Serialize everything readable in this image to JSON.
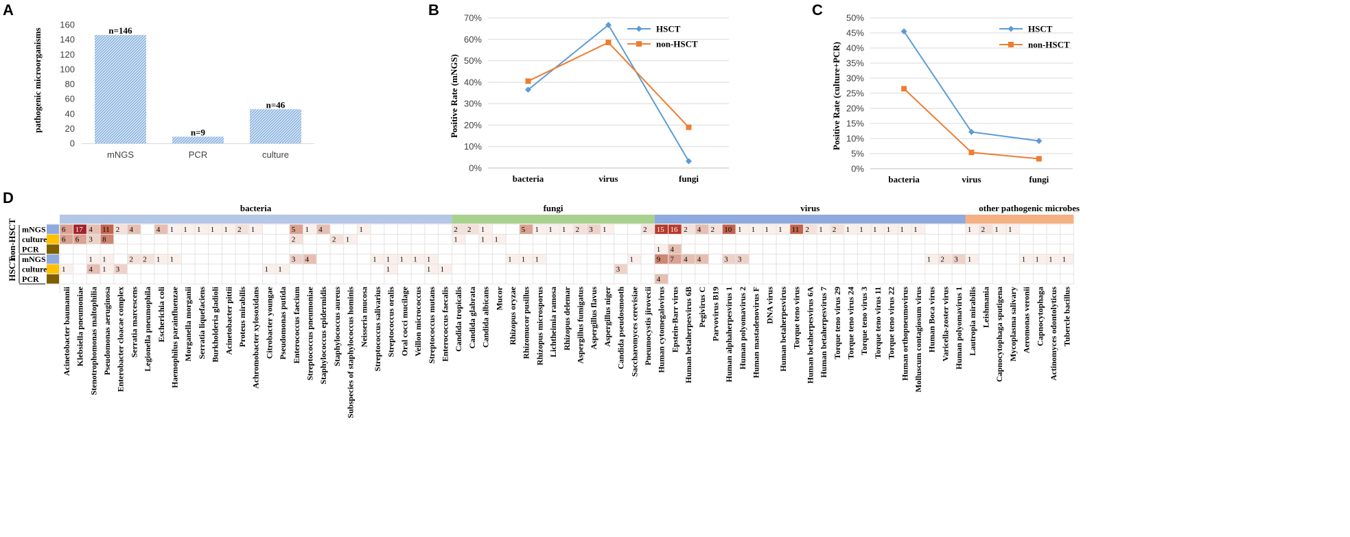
{
  "panels": {
    "a": {
      "letter": "A"
    },
    "b": {
      "letter": "B"
    },
    "c": {
      "letter": "C"
    },
    "d": {
      "letter": "D"
    }
  },
  "chart_data": [
    {
      "id": "A",
      "type": "bar",
      "ylabel": "pathogenic microorganisms",
      "categories": [
        "mNGS",
        "PCR",
        "culture"
      ],
      "values": [
        146,
        9,
        46
      ],
      "labels": [
        "n=146",
        "n=9",
        "n=46"
      ],
      "ylim": [
        0,
        160
      ],
      "yticks": [
        0,
        20,
        40,
        60,
        80,
        100,
        120,
        140,
        160
      ],
      "grid": false
    },
    {
      "id": "B",
      "type": "line",
      "ylabel": "Positive Rate (mNGS)",
      "categories": [
        "bacteria",
        "virus",
        "fungi"
      ],
      "ylim": [
        0,
        70
      ],
      "yticks": [
        "0%",
        "10%",
        "20%",
        "30%",
        "40%",
        "50%",
        "60%",
        "70%"
      ],
      "grid": true,
      "legend": "top-right",
      "series": [
        {
          "name": "HSCT",
          "values": [
            36.5,
            66.7,
            3.2
          ],
          "color": "#5b9bd5",
          "marker": "diamond"
        },
        {
          "name": "non-HSCT",
          "values": [
            40.5,
            58.5,
            19.0
          ],
          "color": "#ed7d31",
          "marker": "square"
        }
      ]
    },
    {
      "id": "C",
      "type": "line",
      "ylabel": "Positive Rate (culture+PCR)",
      "categories": [
        "bacteria",
        "virus",
        "fungi"
      ],
      "ylim": [
        0,
        50
      ],
      "yticks": [
        "0%",
        "5%",
        "10%",
        "15%",
        "20%",
        "25%",
        "30%",
        "35%",
        "40%",
        "45%",
        "50%"
      ],
      "grid": true,
      "legend": "top-right",
      "series": [
        {
          "name": "HSCT",
          "values": [
            45.5,
            12.2,
            9.2
          ],
          "color": "#5b9bd5",
          "marker": "diamond"
        },
        {
          "name": "non-HSCT",
          "values": [
            26.5,
            5.4,
            3.3
          ],
          "color": "#ed7d31",
          "marker": "square"
        }
      ]
    },
    {
      "id": "D",
      "type": "heatmap",
      "groups": [
        {
          "name": "bacteria",
          "span": [
            0,
            28
          ],
          "color": "#b4c7e7"
        },
        {
          "name": "fungi",
          "span": [
            29,
            43
          ],
          "color": "#a9d18e"
        },
        {
          "name": "virus",
          "span": [
            44,
            66
          ],
          "color": "#8faadc"
        },
        {
          "name": "other pathogenic microbes",
          "span": [
            67,
            74
          ],
          "color": "#f4b183"
        }
      ],
      "cohorts": [
        {
          "name": "non-HSCT",
          "rows": [
            0,
            1,
            2
          ]
        },
        {
          "name": "HSCT",
          "rows": [
            3,
            4,
            5
          ]
        }
      ],
      "rows": [
        {
          "name": "mNGS",
          "color": "#8faadc"
        },
        {
          "name": "culture",
          "color": "#ffc000"
        },
        {
          "name": "PCR",
          "color": "#7f6000"
        },
        {
          "name": "mNGS",
          "color": "#8faadc"
        },
        {
          "name": "culture",
          "color": "#ffc000"
        },
        {
          "name": "PCR",
          "color": "#7f6000"
        }
      ],
      "columns": [
        "Acinetobacter baumannii",
        "Klebsiella pneumoniae",
        "Stenotrophomonas maltophilia",
        "Pseudomonas aeruginosa",
        "Enterobacter cloacae complex",
        "Serratia marcescens",
        "Legionella pneumophila",
        "Escherichia coli",
        "Haemophilus parainfluenzae",
        "Morganella morganii",
        "Serratia liquefaciens",
        "Burkholderia gladioli",
        "Acinetobacter pittii",
        "Proteus mirabilis",
        "Achromobacter xylosoxidans",
        "Citrobacter youngae",
        "Pseudomonas putida",
        "Enterococcus faecium",
        "Streptococcus pneumoniae",
        "Staphylococcus epidermidis",
        "Staphylococcus aureus",
        "Subspecies of staphylococcus hominis",
        "Neisseria mucosa",
        "Streptococcus salivarius",
        "Streptococcus oralis",
        "Oral cocci mucilage",
        "Veillon micrococcus",
        "Streptococcus mutans",
        "Enterococcus faecalis",
        "Candida tropicalis",
        "Candida glabrata",
        "Candida albicans",
        "Mucor",
        "Rhizopus oryzae",
        "Rhizomucor pusillus",
        "Rhizopus microsporus",
        "Lichtheimia ramosa",
        "Rhizopus delemar",
        "Aspergillus fumigatus",
        "Aspergillus flavus",
        "Aspergillus niger",
        "Candida pseudosmooth",
        "Saccharomyces cerevisiae",
        "Pneumocystis jirovecii",
        "Human cytomegalovirus",
        "Epstein-Barr virus",
        "Human betaherpesvirus 6B",
        "Pegivirus C",
        "Parvovirus B19",
        "Human alphaherpesvirus 1",
        "Human polyomavirus 2",
        "Human mastadenovirus F",
        "DNA virus",
        "Human betaherpesvirus",
        "Torque teno virus",
        "Human betaherpesvirus 6A",
        "Human betaherpesvirus 7",
        "Torque teno virus 29",
        "Torque teno virus 24",
        "Torque teno virus 3",
        "Torque teno virus 11",
        "Torque teno virus 22",
        "Human orthopneumovirus",
        "Molluscum contagiosum virus",
        "Human Boca virus",
        "Varicella-zoster virus",
        "Human polyomavirus 1",
        "Lautropia mirabilis",
        "Leishmania",
        "Capnocytophaga sputigena",
        "Mycoplasma salivary",
        "Aeromonas veronii",
        "Capnocytophaga",
        "Actinomyces odontolyticus",
        "Tubercle bacillus"
      ],
      "cells": [
        [
          0,
          0,
          6
        ],
        [
          0,
          1,
          17
        ],
        [
          0,
          2,
          4
        ],
        [
          0,
          3,
          11
        ],
        [
          0,
          4,
          2
        ],
        [
          0,
          5,
          4
        ],
        [
          0,
          7,
          4
        ],
        [
          0,
          8,
          1
        ],
        [
          0,
          9,
          1
        ],
        [
          0,
          10,
          1
        ],
        [
          0,
          11,
          1
        ],
        [
          0,
          12,
          1
        ],
        [
          0,
          13,
          2
        ],
        [
          0,
          14,
          1
        ],
        [
          0,
          17,
          5
        ],
        [
          0,
          18,
          1
        ],
        [
          0,
          19,
          4
        ],
        [
          0,
          22,
          1
        ],
        [
          0,
          29,
          2
        ],
        [
          0,
          30,
          2
        ],
        [
          0,
          31,
          1
        ],
        [
          0,
          34,
          5
        ],
        [
          0,
          35,
          1
        ],
        [
          0,
          36,
          1
        ],
        [
          0,
          37,
          1
        ],
        [
          0,
          38,
          2
        ],
        [
          0,
          39,
          3
        ],
        [
          0,
          40,
          1
        ],
        [
          0,
          43,
          2
        ],
        [
          0,
          44,
          15
        ],
        [
          0,
          45,
          16
        ],
        [
          0,
          46,
          2
        ],
        [
          0,
          47,
          4
        ],
        [
          0,
          48,
          2
        ],
        [
          0,
          49,
          10
        ],
        [
          0,
          50,
          1
        ],
        [
          0,
          51,
          1
        ],
        [
          0,
          52,
          1
        ],
        [
          0,
          53,
          1
        ],
        [
          0,
          54,
          11
        ],
        [
          0,
          55,
          2
        ],
        [
          0,
          56,
          1
        ],
        [
          0,
          57,
          2
        ],
        [
          0,
          58,
          1
        ],
        [
          0,
          59,
          1
        ],
        [
          0,
          60,
          1
        ],
        [
          0,
          61,
          1
        ],
        [
          0,
          62,
          1
        ],
        [
          0,
          63,
          1
        ],
        [
          0,
          67,
          1
        ],
        [
          0,
          68,
          2
        ],
        [
          0,
          69,
          1
        ],
        [
          0,
          70,
          1
        ],
        [
          1,
          0,
          6
        ],
        [
          1,
          1,
          6
        ],
        [
          1,
          2,
          3
        ],
        [
          1,
          3,
          8
        ],
        [
          1,
          17,
          2
        ],
        [
          1,
          20,
          2
        ],
        [
          1,
          21,
          1
        ],
        [
          1,
          29,
          1
        ],
        [
          1,
          31,
          1
        ],
        [
          1,
          32,
          1
        ],
        [
          2,
          44,
          1
        ],
        [
          2,
          45,
          4
        ],
        [
          3,
          2,
          1
        ],
        [
          3,
          3,
          1
        ],
        [
          3,
          5,
          2
        ],
        [
          3,
          6,
          2
        ],
        [
          3,
          7,
          1
        ],
        [
          3,
          8,
          1
        ],
        [
          3,
          17,
          3
        ],
        [
          3,
          18,
          4
        ],
        [
          3,
          23,
          1
        ],
        [
          3,
          24,
          1
        ],
        [
          3,
          25,
          1
        ],
        [
          3,
          26,
          1
        ],
        [
          3,
          27,
          1
        ],
        [
          3,
          33,
          1
        ],
        [
          3,
          34,
          1
        ],
        [
          3,
          35,
          1
        ],
        [
          3,
          42,
          1
        ],
        [
          3,
          44,
          9
        ],
        [
          3,
          45,
          7
        ],
        [
          3,
          46,
          4
        ],
        [
          3,
          47,
          4
        ],
        [
          3,
          49,
          3
        ],
        [
          3,
          50,
          3
        ],
        [
          3,
          64,
          1
        ],
        [
          3,
          65,
          2
        ],
        [
          3,
          66,
          3
        ],
        [
          3,
          67,
          1
        ],
        [
          3,
          71,
          1
        ],
        [
          3,
          72,
          1
        ],
        [
          3,
          73,
          1
        ],
        [
          3,
          74,
          1
        ],
        [
          4,
          0,
          1
        ],
        [
          4,
          2,
          4
        ],
        [
          4,
          3,
          1
        ],
        [
          4,
          4,
          3
        ],
        [
          4,
          15,
          1
        ],
        [
          4,
          16,
          1
        ],
        [
          4,
          24,
          1
        ],
        [
          4,
          27,
          1
        ],
        [
          4,
          28,
          1
        ],
        [
          4,
          41,
          3
        ],
        [
          5,
          44,
          4
        ]
      ]
    }
  ]
}
